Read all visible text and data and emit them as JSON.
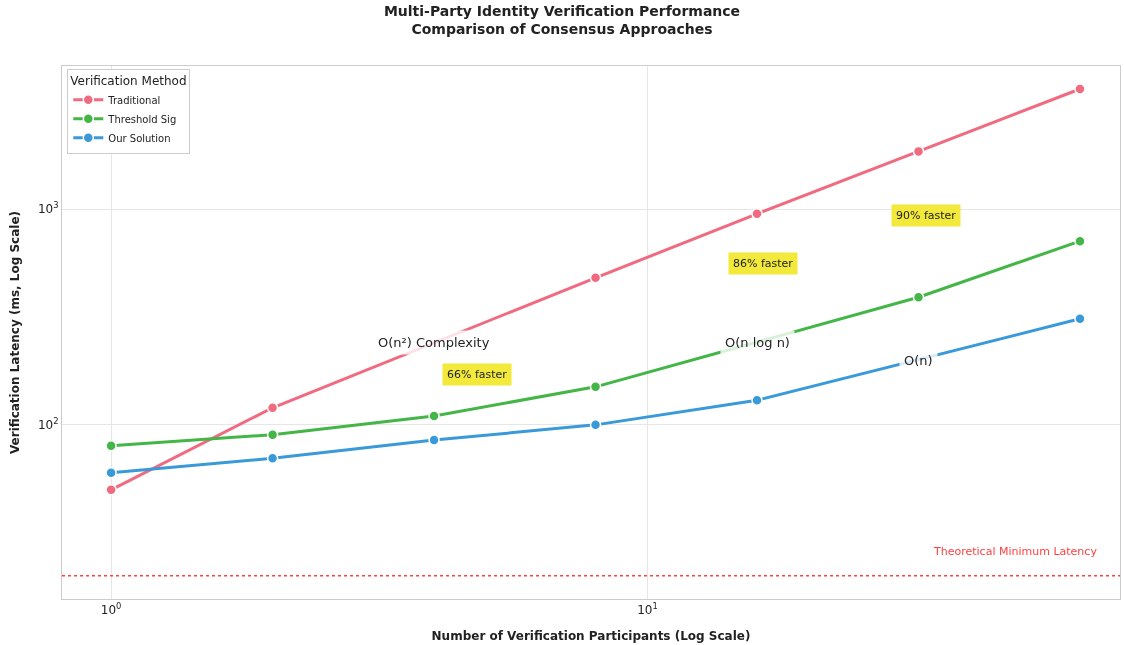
{
  "chart_data": {
    "type": "line",
    "title": "Multi-Party Identity Verification Performance\nComparison of Consensus Approaches",
    "xlabel": "Number of Verification Participants (Log Scale)",
    "ylabel": "Verification Latency (ms, Log Scale)",
    "legend_title": "Verification Method",
    "x": [
      1,
      2,
      4,
      8,
      16,
      32,
      64
    ],
    "series": [
      {
        "name": "Traditional",
        "color": "#f06a80",
        "values": [
          50,
          120,
          null,
          480,
          950,
          1850,
          3600
        ]
      },
      {
        "name": "Threshold Sig",
        "color": "#44b547",
        "values": [
          80,
          90,
          110,
          150,
          null,
          390,
          710
        ]
      },
      {
        "name": "Our Solution",
        "color": "#3a9ad9",
        "values": [
          60,
          70,
          85,
          100,
          130,
          null,
          310
        ]
      }
    ],
    "log": "xy",
    "xlim": [
      0.81,
      76
    ],
    "ylim": [
      15.6,
      4600
    ],
    "xticks": [
      {
        "value": 1,
        "label": "10$^{0}$"
      },
      {
        "value": 10,
        "label": "10$^{1}$"
      }
    ],
    "yticks": [
      {
        "value": 100,
        "label": "10$^{2}$"
      },
      {
        "value": 1000,
        "label": "10$^{3}$"
      }
    ],
    "ref_lines": [
      {
        "axis": "y",
        "value": 20,
        "label": "Theoretical Minimum Latency",
        "color": "#ff4040",
        "line_style": "dotted"
      }
    ],
    "annotations": [
      {
        "text": "O(n²) Complexity",
        "x": 4,
        "y": 240
      },
      {
        "text": "O(n log n)",
        "x": 16,
        "y": 240
      },
      {
        "text": "O(n)",
        "x": 32,
        "y": 198
      },
      "66% faster",
      "86% faster",
      "90% faster"
    ],
    "grid": true,
    "legend": "top left",
    "marker": "circle",
    "line_style": "solid"
  }
}
